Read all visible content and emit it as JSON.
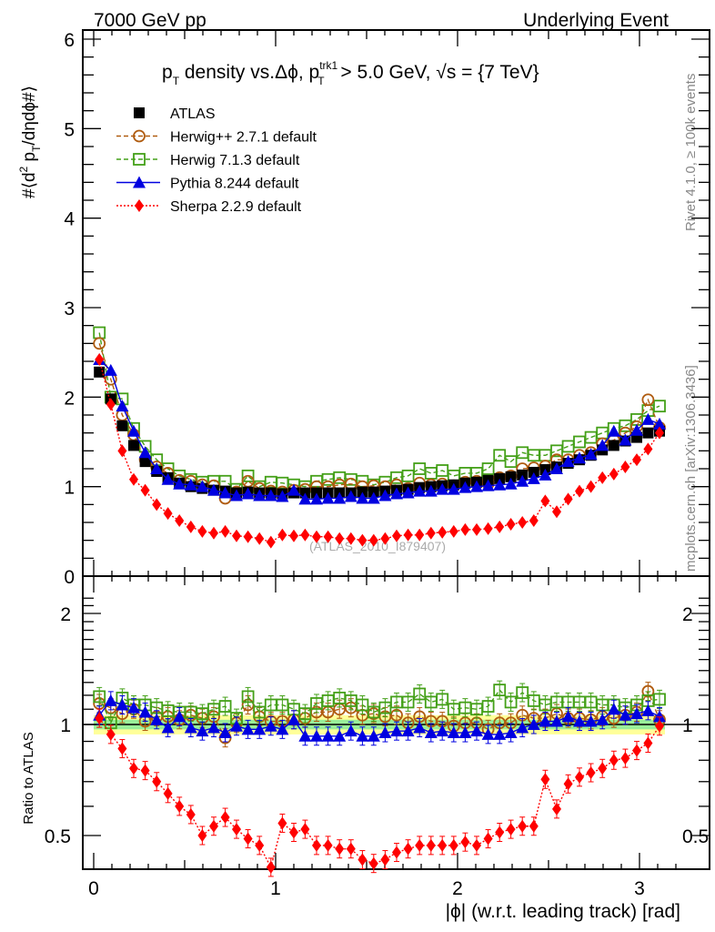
{
  "header": {
    "left_label": "7000 GeV pp",
    "right_label": "Underlying Event"
  },
  "side_labels": {
    "rivet": "Rivet 4.1.0, ≥ 100k events",
    "mcplots": "mcplots.cern.ch [arXiv:1306.3436]"
  },
  "watermark": "(ATLAS_2010_I879407)",
  "chart_data": [
    {
      "type": "scatter",
      "panel": "main",
      "title_parts": {
        "p": "p",
        "sub_T": "T",
        "mid": " density vs.Δϕ, p",
        "sup_trk1": "trk1",
        "sub_T2": "T",
        "tail": " > 5.0 GeV, √s = {7 TeV}"
      },
      "title": "pT density vs.Δϕ, pT^trk1 > 5.0 GeV, √s = {7 TeV}",
      "ylabel": "#⟨d² p_T/dηdϕ#⟩",
      "ylabel_parts": {
        "pre": "#⟨d",
        "sup2": "2",
        "p": " p",
        "subT": "T",
        "post": "/dηdϕ#⟩"
      },
      "xlabel": "",
      "xlim": [
        -0.06,
        3.38
      ],
      "ylim": [
        0,
        6
      ],
      "yticks": [
        "0",
        "1",
        "2",
        "3",
        "4",
        "5",
        "6"
      ],
      "legend_position": "top-left",
      "x": [
        0.031,
        0.094,
        0.157,
        0.22,
        0.283,
        0.346,
        0.408,
        0.471,
        0.534,
        0.597,
        0.66,
        0.723,
        0.785,
        0.848,
        0.911,
        0.974,
        1.037,
        1.1,
        1.162,
        1.225,
        1.288,
        1.351,
        1.414,
        1.477,
        1.539,
        1.602,
        1.665,
        1.728,
        1.791,
        1.854,
        1.916,
        1.979,
        2.042,
        2.105,
        2.168,
        2.231,
        2.293,
        2.356,
        2.419,
        2.482,
        2.545,
        2.608,
        2.67,
        2.733,
        2.796,
        2.859,
        2.922,
        2.985,
        3.047,
        3.11
      ],
      "series": [
        {
          "name": "ATLAS",
          "color": "#000000",
          "marker": "square-filled",
          "line": "none",
          "values": [
            2.28,
            1.98,
            1.68,
            1.46,
            1.28,
            1.17,
            1.1,
            1.04,
            1.0,
            0.98,
            0.96,
            0.95,
            0.93,
            0.94,
            0.93,
            0.93,
            0.92,
            0.93,
            0.93,
            0.93,
            0.93,
            0.93,
            0.93,
            0.94,
            0.94,
            0.95,
            0.96,
            0.97,
            0.99,
            1.0,
            1.01,
            1.02,
            1.04,
            1.05,
            1.07,
            1.09,
            1.11,
            1.13,
            1.16,
            1.19,
            1.22,
            1.26,
            1.3,
            1.35,
            1.41,
            1.46,
            1.51,
            1.55,
            1.6,
            1.62
          ]
        },
        {
          "name": "Herwig++ 2.7.1 default",
          "color": "#b05c10",
          "marker": "circle-open",
          "line": "dashed",
          "values": [
            2.6,
            2.2,
            1.8,
            1.58,
            1.3,
            1.22,
            1.15,
            1.07,
            1.06,
            1.02,
            1.01,
            0.87,
            0.94,
            1.06,
            0.98,
            0.95,
            0.94,
            0.96,
            0.97,
            1.0,
            1.0,
            1.02,
            1.03,
            1.0,
            1.01,
            1.0,
            1.02,
            0.98,
            1.04,
            1.02,
            1.03,
            1.01,
            1.05,
            1.06,
            1.03,
            1.1,
            1.12,
            1.2,
            1.21,
            1.23,
            1.3,
            1.3,
            1.35,
            1.38,
            1.48,
            1.52,
            1.6,
            1.67,
            1.97,
            1.66
          ]
        },
        {
          "name": "Herwig 7.1.3 default",
          "color": "#44a018",
          "marker": "square-open",
          "line": "dashed",
          "values": [
            2.72,
            2.0,
            1.98,
            1.65,
            1.45,
            1.3,
            1.2,
            1.12,
            1.08,
            1.05,
            1.06,
            1.06,
            0.97,
            1.12,
            1.0,
            1.05,
            1.04,
            1.02,
            1.0,
            1.06,
            1.08,
            1.1,
            1.08,
            1.06,
            1.02,
            1.05,
            1.1,
            1.12,
            1.2,
            1.15,
            1.18,
            1.12,
            1.15,
            1.15,
            1.2,
            1.35,
            1.28,
            1.38,
            1.35,
            1.35,
            1.4,
            1.45,
            1.5,
            1.55,
            1.6,
            1.65,
            1.68,
            1.75,
            1.85,
            1.9
          ]
        },
        {
          "name": "Pythia 8.244 default",
          "color": "#0000e0",
          "marker": "triangle-filled",
          "line": "solid",
          "values": [
            2.42,
            2.3,
            1.9,
            1.62,
            1.38,
            1.2,
            1.08,
            1.03,
            1.02,
            1.0,
            0.96,
            0.93,
            0.9,
            0.92,
            0.9,
            0.9,
            0.89,
            0.96,
            0.86,
            0.86,
            0.87,
            0.87,
            0.89,
            0.87,
            0.87,
            0.9,
            0.92,
            0.93,
            0.95,
            0.95,
            0.97,
            0.97,
            0.99,
            1.0,
            1.01,
            1.02,
            1.03,
            1.06,
            1.09,
            1.13,
            1.2,
            1.28,
            1.32,
            1.36,
            1.46,
            1.62,
            1.52,
            1.63,
            1.75,
            1.7
          ]
        },
        {
          "name": "Sherpa 2.2.9 default",
          "color": "#ff0000",
          "marker": "diamond-filled",
          "line": "dotted",
          "values": [
            2.42,
            1.92,
            1.4,
            1.08,
            0.96,
            0.8,
            0.7,
            0.62,
            0.55,
            0.5,
            0.48,
            0.5,
            0.45,
            0.44,
            0.42,
            0.38,
            0.46,
            0.45,
            0.46,
            0.44,
            0.44,
            0.42,
            0.42,
            0.4,
            0.4,
            0.42,
            0.45,
            0.46,
            0.46,
            0.48,
            0.49,
            0.5,
            0.52,
            0.52,
            0.53,
            0.55,
            0.58,
            0.6,
            0.62,
            0.84,
            0.72,
            0.86,
            0.95,
            1.0,
            1.1,
            1.14,
            1.22,
            1.3,
            1.42,
            1.6
          ]
        }
      ]
    },
    {
      "type": "scatter",
      "panel": "ratio",
      "ylabel": "Ratio to ATLAS",
      "xlabel": "|ϕ| (w.r.t. leading track) [rad]",
      "xlim": [
        -0.06,
        3.38
      ],
      "ylim": [
        0.4,
        2.3
      ],
      "yscale": "log",
      "xticks": [
        "0",
        "1",
        "2",
        "3"
      ],
      "yticks": [
        "0.5",
        "1",
        "2"
      ],
      "band_colors": {
        "inner": "#99ee99",
        "outer": "#ffff99"
      },
      "band_inner": 0.03,
      "band_outer": 0.06,
      "series": [
        {
          "name": "Herwig++ 2.7.1 default",
          "values": [
            1.14,
            1.11,
            1.07,
            1.1,
            1.02,
            1.05,
            1.05,
            1.03,
            1.06,
            1.04,
            1.05,
            0.92,
            1.01,
            1.13,
            1.05,
            1.02,
            1.02,
            1.03,
            1.04,
            1.08,
            1.08,
            1.1,
            1.11,
            1.06,
            1.07,
            1.05,
            1.06,
            1.01,
            1.05,
            1.02,
            1.02,
            0.99,
            1.01,
            1.01,
            0.97,
            1.01,
            1.01,
            1.06,
            1.04,
            1.04,
            1.07,
            1.04,
            1.04,
            1.03,
            1.05,
            1.04,
            1.06,
            1.08,
            1.23,
            1.03
          ]
        },
        {
          "name": "Herwig 7.1.3 default",
          "values": [
            1.19,
            1.01,
            1.18,
            1.13,
            1.13,
            1.11,
            1.09,
            1.08,
            1.08,
            1.07,
            1.1,
            1.12,
            1.04,
            1.19,
            1.08,
            1.13,
            1.13,
            1.1,
            1.07,
            1.14,
            1.16,
            1.18,
            1.16,
            1.13,
            1.08,
            1.11,
            1.15,
            1.15,
            1.21,
            1.15,
            1.17,
            1.1,
            1.11,
            1.1,
            1.12,
            1.24,
            1.15,
            1.22,
            1.16,
            1.13,
            1.15,
            1.15,
            1.15,
            1.15,
            1.13,
            1.13,
            1.11,
            1.13,
            1.16,
            1.17
          ]
        },
        {
          "name": "Pythia 8.244 default",
          "values": [
            1.06,
            1.16,
            1.13,
            1.11,
            1.08,
            1.03,
            0.98,
            1.05,
            0.98,
            0.96,
            0.98,
            0.95,
            0.99,
            0.97,
            0.97,
            0.99,
            0.97,
            1.03,
            0.93,
            0.93,
            0.93,
            0.93,
            0.96,
            0.93,
            0.93,
            0.95,
            0.96,
            0.96,
            0.98,
            0.95,
            0.96,
            0.95,
            0.95,
            0.96,
            0.94,
            0.94,
            0.95,
            0.98,
            1.0,
            1.02,
            1.02,
            1.05,
            1.02,
            1.02,
            1.03,
            1.1,
            1.06,
            1.07,
            1.09,
            1.05
          ]
        },
        {
          "name": "Sherpa 2.2.9 default",
          "values": [
            1.04,
            0.94,
            0.86,
            0.76,
            0.75,
            0.7,
            0.65,
            0.6,
            0.57,
            0.5,
            0.53,
            0.56,
            0.52,
            0.49,
            0.47,
            0.41,
            0.54,
            0.51,
            0.52,
            0.47,
            0.47,
            0.46,
            0.46,
            0.43,
            0.42,
            0.43,
            0.45,
            0.46,
            0.47,
            0.47,
            0.47,
            0.47,
            0.48,
            0.47,
            0.49,
            0.51,
            0.52,
            0.53,
            0.53,
            0.71,
            0.59,
            0.69,
            0.72,
            0.74,
            0.76,
            0.8,
            0.81,
            0.85,
            0.89,
            0.99
          ]
        }
      ]
    }
  ]
}
